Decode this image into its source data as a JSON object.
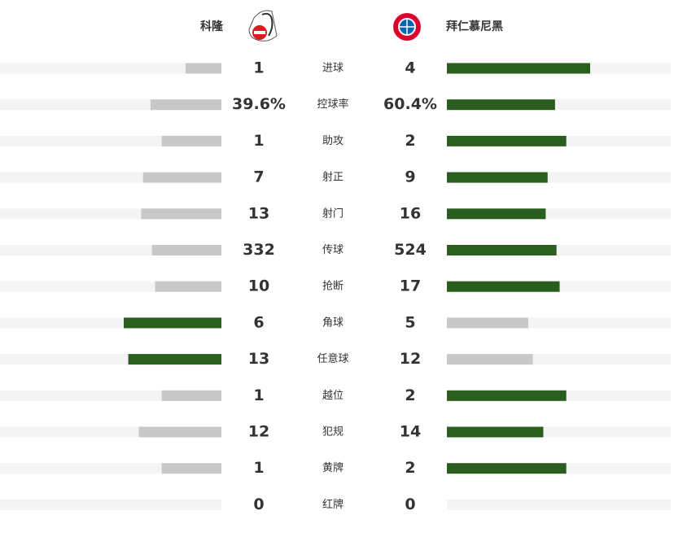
{
  "header": {
    "home": "科隆",
    "away": "拜仁慕尼黑"
  },
  "stats": [
    {
      "label": "进球",
      "home": 1,
      "away": 4
    },
    {
      "label": "控球率",
      "home": 39.6,
      "away": 60.4,
      "home_label": "39.6%",
      "away_label": "60.4%"
    },
    {
      "label": "助攻",
      "home": 1,
      "away": 2
    },
    {
      "label": "射正",
      "home": 7,
      "away": 9
    },
    {
      "label": "射门",
      "home": 13,
      "away": 16
    },
    {
      "label": "传球",
      "home": 332,
      "away": 524
    },
    {
      "label": "抢断",
      "home": 10,
      "away": 17
    },
    {
      "label": "角球",
      "home": 6,
      "away": 5
    },
    {
      "label": "任意球",
      "home": 13,
      "away": 12
    },
    {
      "label": "越位",
      "home": 1,
      "away": 2
    },
    {
      "label": "犯规",
      "home": 12,
      "away": 14
    },
    {
      "label": "黄牌",
      "home": 1,
      "away": 2
    },
    {
      "label": "红牌",
      "home": 0,
      "away": 0
    }
  ]
}
